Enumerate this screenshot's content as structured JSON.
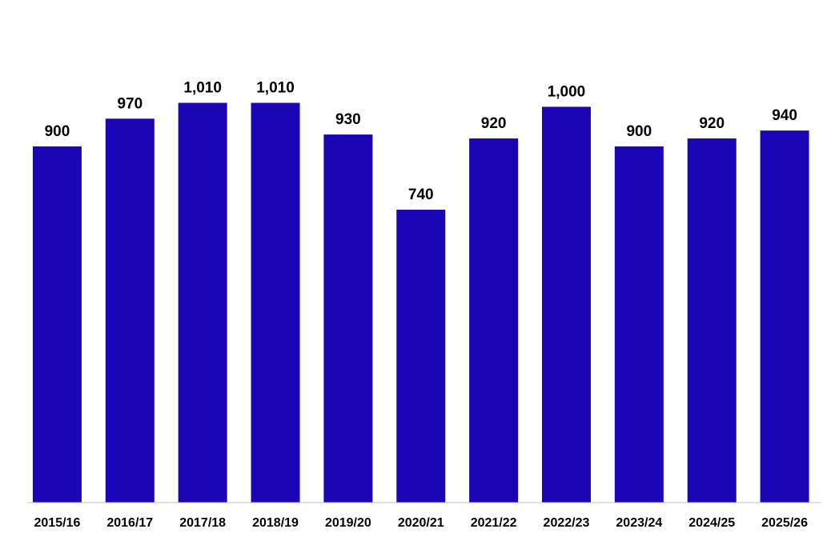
{
  "chart_data": {
    "type": "bar",
    "categories": [
      "2015/16",
      "2016/17",
      "2017/18",
      "2018/19",
      "2019/20",
      "2020/21",
      "2021/22",
      "2022/23",
      "2023/24",
      "2024/25",
      "2025/26"
    ],
    "values": [
      900,
      970,
      1010,
      1010,
      930,
      740,
      920,
      1000,
      900,
      920,
      940
    ],
    "value_labels": [
      "900",
      "970",
      "1,010",
      "1,010",
      "930",
      "740",
      "920",
      "1,000",
      "900",
      "920",
      "940"
    ],
    "color": "#1a06b5",
    "ylim": [
      0,
      1100
    ]
  }
}
